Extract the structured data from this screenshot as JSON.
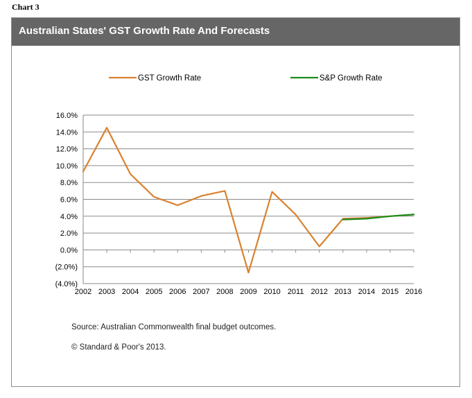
{
  "chart_label": "Chart 3",
  "chart_data": {
    "type": "line",
    "title": "Australian States' GST Growth Rate And Forecasts",
    "categories": [
      "2002",
      "2003",
      "2004",
      "2005",
      "2006",
      "2007",
      "2008",
      "2009",
      "2010",
      "2011",
      "2012",
      "2013",
      "2014",
      "2015",
      "2016"
    ],
    "series": [
      {
        "name": "GST Growth Rate",
        "color": "#d9812e",
        "values": [
          9.3,
          14.5,
          9.0,
          6.3,
          5.3,
          6.4,
          7.0,
          -2.7,
          6.9,
          4.2,
          0.4,
          3.7,
          3.8,
          4.0,
          4.2
        ]
      },
      {
        "name": "S&P Growth Rate",
        "color": "#1a8c1a",
        "values": [
          null,
          null,
          null,
          null,
          null,
          null,
          null,
          null,
          null,
          null,
          null,
          3.6,
          3.7,
          4.0,
          4.2
        ]
      }
    ],
    "y_ticks": [
      "16.0%",
      "14.0%",
      "12.0%",
      "10.0%",
      "8.0%",
      "6.0%",
      "4.0%",
      "2.0%",
      "0.0%",
      "(2.0%)",
      "(4.0%)"
    ],
    "ylim": [
      -4,
      16
    ],
    "xlabel": "",
    "ylabel": "",
    "grid": true,
    "legend": "top"
  },
  "notes": {
    "source": "Source: Australian Commonwealth final budget outcomes.",
    "copyright": "© Standard & Poor's 2013."
  }
}
